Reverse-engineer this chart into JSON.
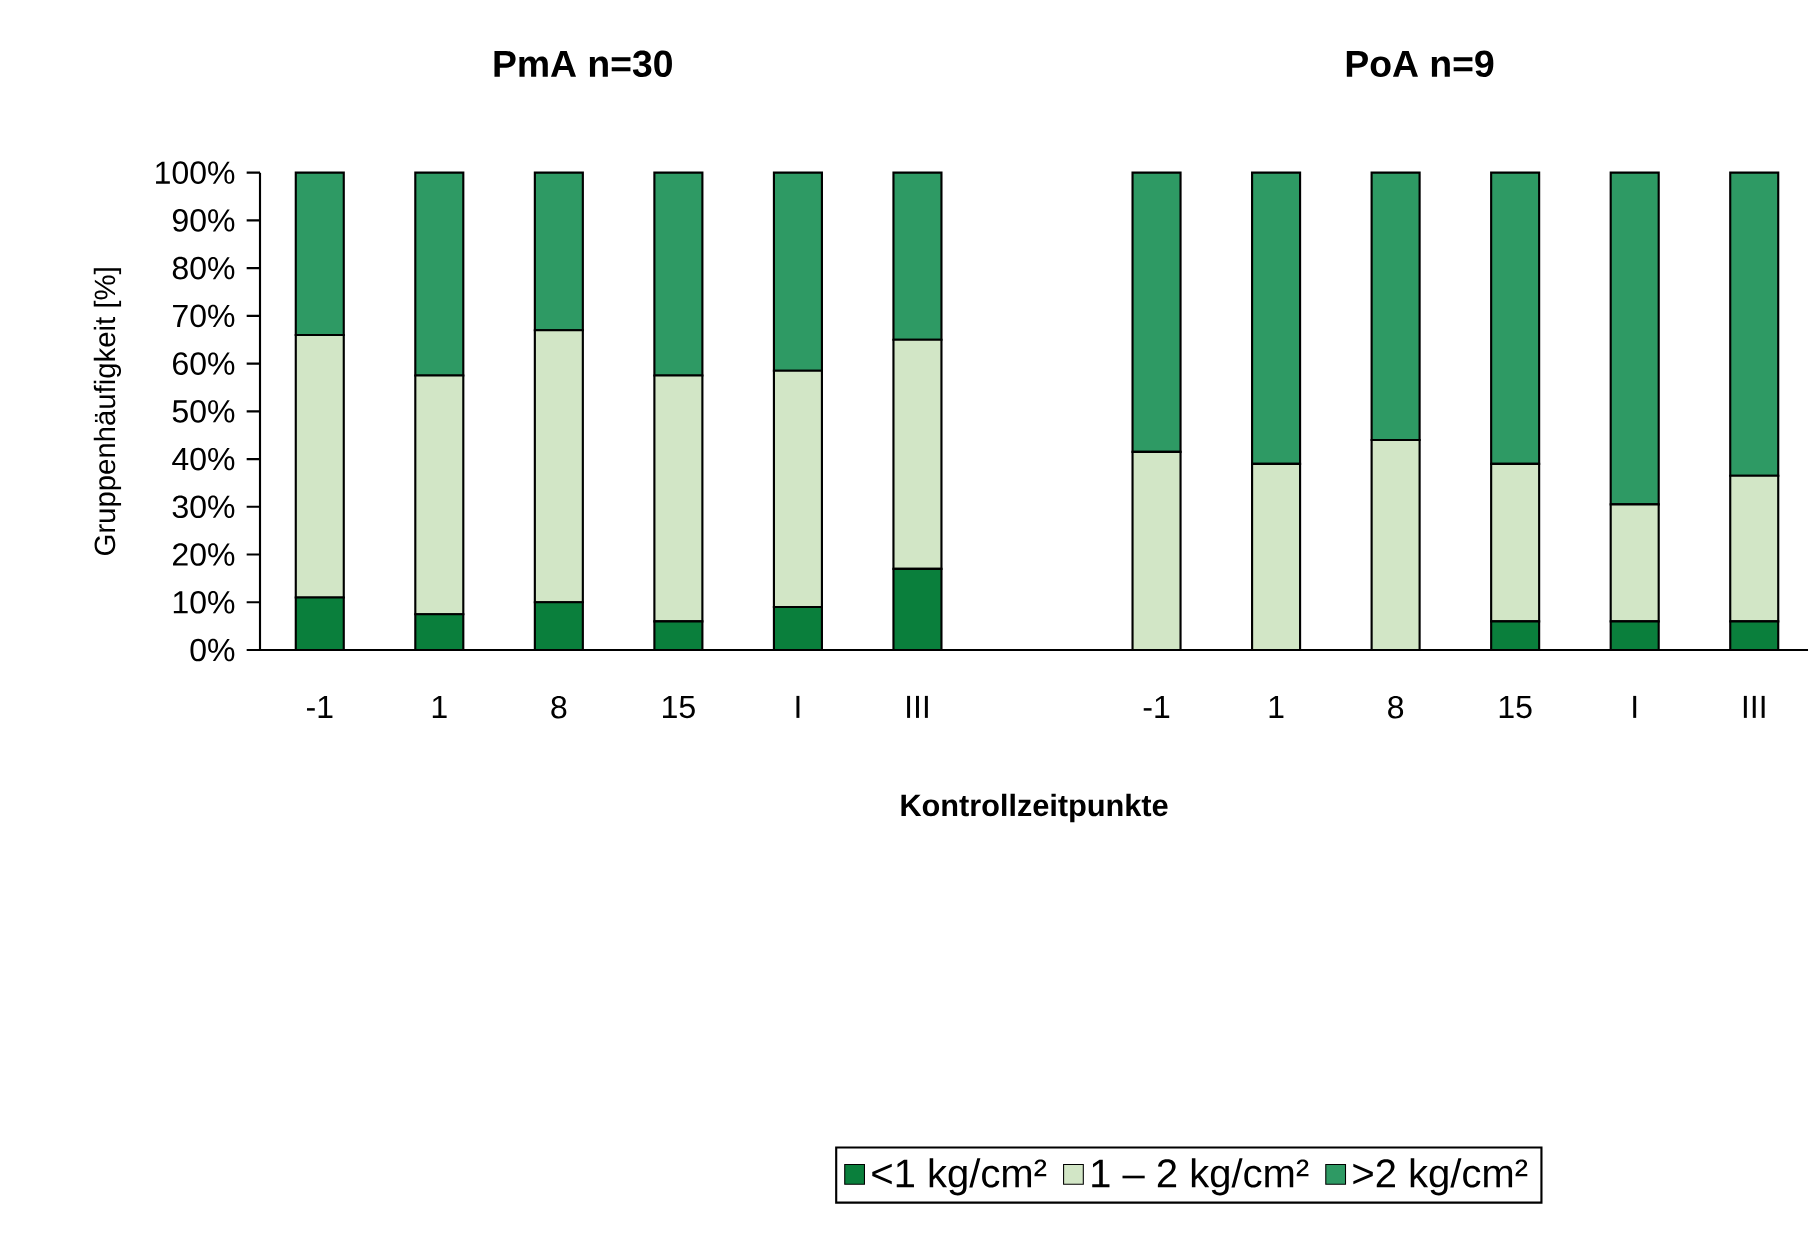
{
  "chart_data": {
    "type": "bar",
    "stacked": true,
    "annotations": [
      "PmA  n=30",
      "PoA  n=9"
    ],
    "xlabel": "Kontrollzeitpunkte",
    "ylabel": "Gruppenhäufigkeit  [%]",
    "categories": [
      "-1",
      "1",
      "8",
      "15",
      "I",
      "III",
      null,
      "-1",
      "1",
      "8",
      "15",
      "I",
      "III"
    ],
    "series": [
      {
        "name": "<1 kg/cm²",
        "color": "#0a7f3c",
        "values": [
          11,
          7.5,
          10,
          6,
          9,
          17,
          null,
          0,
          0,
          0,
          6,
          6,
          6
        ]
      },
      {
        "name": "1 – 2 kg/cm²",
        "color": "#d2e6c6",
        "values": [
          55,
          50,
          57,
          51.5,
          49.5,
          48,
          null,
          41.5,
          39,
          44,
          33,
          24.5,
          30.5
        ]
      },
      {
        "name": ">2 kg/cm²",
        "color": "#2e9a64",
        "values": [
          34,
          42.5,
          33,
          42.5,
          41.5,
          35,
          null,
          58.5,
          61,
          56,
          61,
          69.5,
          63.5
        ]
      }
    ],
    "ylim": [
      0,
      100
    ],
    "yticks": [
      {
        "value": 0,
        "label": "0%"
      },
      {
        "value": 10,
        "label": "10%"
      },
      {
        "value": 20,
        "label": "20%"
      },
      {
        "value": 30,
        "label": "30%"
      },
      {
        "value": 40,
        "label": "40%"
      },
      {
        "value": 50,
        "label": "50%"
      },
      {
        "value": 60,
        "label": "60%"
      },
      {
        "value": 70,
        "label": "70%"
      },
      {
        "value": 80,
        "label": "80%"
      },
      {
        "value": 90,
        "label": "90%"
      },
      {
        "value": 100,
        "label": "100%"
      }
    ],
    "legend": "bottom",
    "grid": false
  }
}
